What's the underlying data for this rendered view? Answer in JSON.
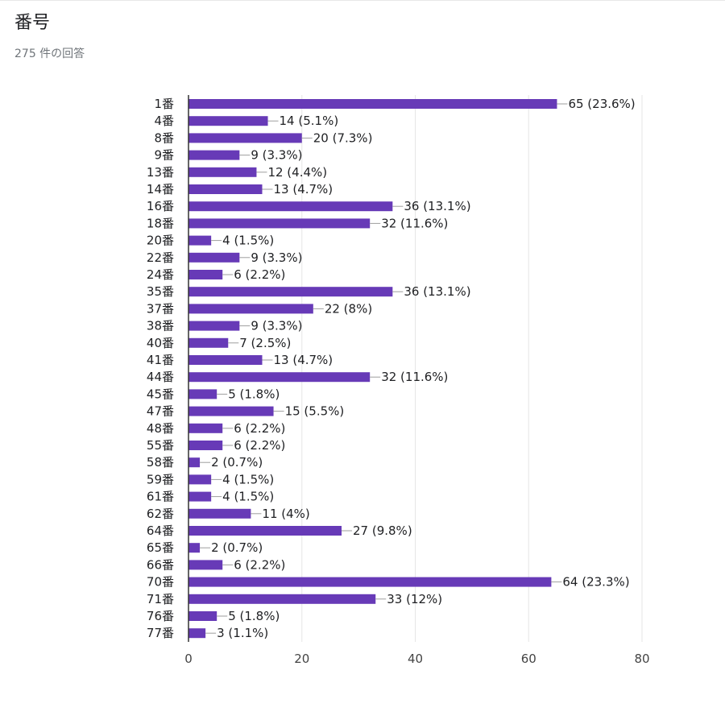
{
  "header": {
    "title": "番号",
    "subtitle": "275 件の回答"
  },
  "colors": {
    "bar": "#673ab7",
    "text": "#202124",
    "axis": "#333333",
    "grid": "#e6e6e6",
    "leader": "#9e9e9e"
  },
  "chart_data": {
    "type": "bar",
    "orientation": "horizontal",
    "xlim": [
      0,
      80
    ],
    "xticks": [
      0,
      20,
      40,
      60,
      80
    ],
    "grid": true,
    "categories": [
      "1番",
      "4番",
      "8番",
      "9番",
      "13番",
      "14番",
      "16番",
      "18番",
      "20番",
      "22番",
      "24番",
      "35番",
      "37番",
      "38番",
      "40番",
      "41番",
      "44番",
      "45番",
      "47番",
      "48番",
      "55番",
      "58番",
      "59番",
      "61番",
      "62番",
      "64番",
      "65番",
      "66番",
      "70番",
      "71番",
      "76番",
      "77番"
    ],
    "values": [
      65,
      14,
      20,
      9,
      12,
      13,
      36,
      32,
      4,
      9,
      6,
      36,
      22,
      9,
      7,
      13,
      32,
      5,
      15,
      6,
      6,
      2,
      4,
      4,
      11,
      27,
      2,
      6,
      64,
      33,
      5,
      3
    ],
    "labels": [
      "65 (23.6%)",
      "14 (5.1%)",
      "20 (7.3%)",
      "9 (3.3%)",
      "12 (4.4%)",
      "13 (4.7%)",
      "36 (13.1%)",
      "32 (11.6%)",
      "4 (1.5%)",
      "9 (3.3%)",
      "6 (2.2%)",
      "36 (13.1%)",
      "22 (8%)",
      "9 (3.3%)",
      "7 (2.5%)",
      "13 (4.7%)",
      "32 (11.6%)",
      "5 (1.8%)",
      "15 (5.5%)",
      "6 (2.2%)",
      "6 (2.2%)",
      "2 (0.7%)",
      "4 (1.5%)",
      "4 (1.5%)",
      "11 (4%)",
      "27 (9.8%)",
      "2 (0.7%)",
      "6 (2.2%)",
      "64 (23.3%)",
      "33 (12%)",
      "5 (1.8%)",
      "3 (1.1%)"
    ]
  }
}
